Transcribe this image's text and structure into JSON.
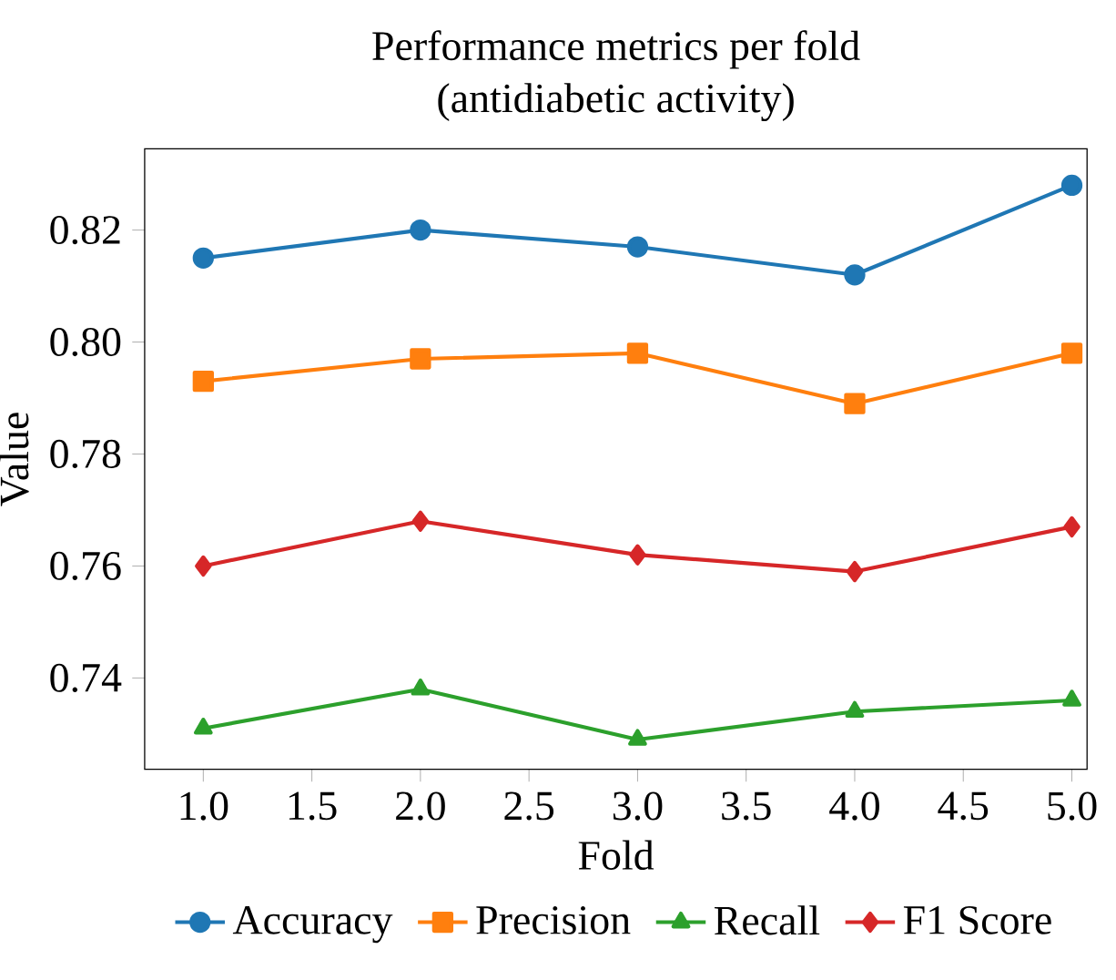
{
  "chart_data": {
    "type": "line",
    "title": "Performance metrics per fold",
    "subtitle": "(antidiabetic activity)",
    "xlabel": "Fold",
    "ylabel": "Value",
    "x": [
      1,
      2,
      3,
      4,
      5
    ],
    "series": [
      {
        "name": "Accuracy",
        "color": "#1f77b4",
        "marker": "circle",
        "values": [
          0.815,
          0.82,
          0.817,
          0.812,
          0.828
        ]
      },
      {
        "name": "Precision",
        "color": "#ff7f0e",
        "marker": "square",
        "values": [
          0.793,
          0.797,
          0.798,
          0.789,
          0.798
        ]
      },
      {
        "name": "Recall",
        "color": "#2ca02c",
        "marker": "triangle",
        "values": [
          0.731,
          0.738,
          0.729,
          0.734,
          0.736
        ]
      },
      {
        "name": "F1 Score",
        "color": "#d62728",
        "marker": "diamond",
        "values": [
          0.76,
          0.768,
          0.762,
          0.759,
          0.767
        ]
      }
    ],
    "xlim": [
      0.73,
      5.07
    ],
    "ylim": [
      0.7237,
      0.8345
    ],
    "xticks": [
      {
        "value": 1,
        "label": "1.0"
      },
      {
        "value": 1.5,
        "label": "1.5"
      },
      {
        "value": 2,
        "label": "2.0"
      },
      {
        "value": 2.5,
        "label": "2.5"
      },
      {
        "value": 3,
        "label": "3.0"
      },
      {
        "value": 3.5,
        "label": "3.5"
      },
      {
        "value": 4,
        "label": "4.0"
      },
      {
        "value": 4.5,
        "label": "4.5"
      },
      {
        "value": 5,
        "label": "5.0"
      }
    ],
    "yticks": [
      {
        "value": 0.74,
        "label": "0.74"
      },
      {
        "value": 0.76,
        "label": "0.76"
      },
      {
        "value": 0.78,
        "label": "0.78"
      },
      {
        "value": 0.8,
        "label": "0.80"
      },
      {
        "value": 0.82,
        "label": "0.82"
      }
    ],
    "legend": "bottom",
    "line_style": "solid"
  }
}
